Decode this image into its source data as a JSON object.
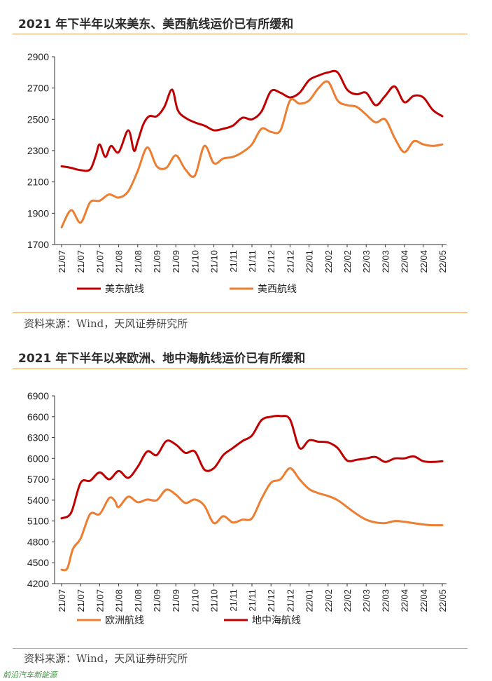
{
  "chart_data": [
    {
      "type": "line",
      "title": "2021 年下半年以来美东、美西航线运价已有所缓和",
      "categories": [
        "21/07",
        "21/07",
        "21/07",
        "21/08",
        "21/08",
        "21/09",
        "21/09",
        "21/10",
        "21/10",
        "21/11",
        "21/11",
        "21/12",
        "21/12",
        "22/01",
        "22/02",
        "22/02",
        "22/03",
        "22/03",
        "22/04",
        "22/04",
        "22/05"
      ],
      "ylim": [
        1700,
        2900
      ],
      "yticks": [
        1700,
        1900,
        2100,
        2300,
        2500,
        2700,
        2900
      ],
      "series": [
        {
          "name": "美东航线",
          "color": "#c00000",
          "x": [
            0,
            0.5,
            1,
            1.5,
            1.8,
            2,
            2.3,
            2.6,
            3,
            3.5,
            3.8,
            4,
            4.3,
            4.6,
            5,
            5.4,
            5.8,
            6.1,
            6.5,
            7,
            7.5,
            8,
            8.5,
            9,
            9.5,
            10,
            10.5,
            11,
            11.5,
            12,
            12.5,
            13,
            13.5,
            14,
            14.5,
            15,
            15.5,
            16,
            16.5,
            17,
            17.5,
            18,
            18.5,
            19,
            19.5,
            20
          ],
          "values": [
            2200,
            2190,
            2175,
            2180,
            2270,
            2340,
            2260,
            2330,
            2290,
            2430,
            2300,
            2360,
            2470,
            2520,
            2520,
            2580,
            2690,
            2560,
            2510,
            2480,
            2460,
            2430,
            2440,
            2460,
            2510,
            2500,
            2550,
            2680,
            2670,
            2640,
            2670,
            2750,
            2780,
            2800,
            2800,
            2690,
            2660,
            2670,
            2590,
            2650,
            2710,
            2610,
            2650,
            2640,
            2560,
            2520
          ]
        },
        {
          "name": "美西航线",
          "color": "#ed7d31",
          "x": [
            0,
            0.5,
            1,
            1.5,
            2,
            2.5,
            3,
            3.5,
            4,
            4.5,
            5,
            5.5,
            6,
            6.5,
            7,
            7.5,
            8,
            8.5,
            9,
            9.5,
            10,
            10.5,
            11,
            11.5,
            12,
            12.5,
            13,
            13.5,
            14,
            14.5,
            15,
            15.5,
            16,
            16.5,
            17,
            17.5,
            18,
            18.5,
            19,
            19.5,
            20
          ],
          "values": [
            1810,
            1920,
            1840,
            1970,
            1980,
            2020,
            2000,
            2040,
            2170,
            2320,
            2200,
            2190,
            2270,
            2180,
            2140,
            2330,
            2220,
            2250,
            2260,
            2290,
            2340,
            2440,
            2420,
            2430,
            2620,
            2600,
            2620,
            2700,
            2740,
            2620,
            2590,
            2580,
            2530,
            2480,
            2500,
            2380,
            2290,
            2360,
            2340,
            2330,
            2340
          ]
        }
      ]
    },
    {
      "type": "line",
      "title": "2021 年下半年以来欧洲、地中海航线运价已有所缓和",
      "categories": [
        "21/07",
        "21/07",
        "21/07",
        "21/08",
        "21/08",
        "21/09",
        "21/09",
        "21/10",
        "21/10",
        "21/11",
        "21/11",
        "21/12",
        "21/12",
        "22/01",
        "22/02",
        "22/02",
        "22/03",
        "22/03",
        "22/04",
        "22/04",
        "22/05"
      ],
      "ylim": [
        4200,
        6900
      ],
      "yticks": [
        4200,
        4500,
        4800,
        5100,
        5400,
        5700,
        6000,
        6300,
        6600,
        6900
      ],
      "series": [
        {
          "name": "欧洲航线",
          "color": "#ed7d31",
          "x": [
            0,
            0.3,
            0.6,
            1,
            1.5,
            2,
            2.5,
            2.8,
            3,
            3.5,
            4,
            4.5,
            5,
            5.5,
            6,
            6.5,
            7,
            7.5,
            8,
            8.5,
            9,
            9.5,
            10,
            10.5,
            11,
            11.5,
            12,
            12.5,
            13,
            13.5,
            14,
            14.5,
            15,
            15.5,
            16,
            16.5,
            17,
            17.5,
            18,
            18.5,
            19,
            19.5,
            20
          ],
          "values": [
            4400,
            4420,
            4700,
            4850,
            5200,
            5200,
            5430,
            5390,
            5300,
            5450,
            5370,
            5410,
            5400,
            5550,
            5480,
            5360,
            5410,
            5320,
            5070,
            5170,
            5080,
            5120,
            5140,
            5420,
            5650,
            5700,
            5860,
            5700,
            5560,
            5500,
            5460,
            5400,
            5300,
            5200,
            5120,
            5080,
            5070,
            5100,
            5090,
            5070,
            5050,
            5040,
            5040
          ]
        },
        {
          "name": "地中海航线",
          "color": "#c00000",
          "x": [
            0,
            0.5,
            1,
            1.5,
            2,
            2.5,
            3,
            3.5,
            4,
            4.5,
            5,
            5.5,
            6,
            6.5,
            7,
            7.5,
            8,
            8.5,
            9,
            9.5,
            10,
            10.5,
            11,
            11.5,
            12,
            12.5,
            13,
            13.5,
            14,
            14.5,
            15,
            15.5,
            16,
            16.5,
            17,
            17.5,
            18,
            18.5,
            19,
            19.5,
            20
          ],
          "values": [
            5140,
            5220,
            5650,
            5680,
            5800,
            5700,
            5820,
            5720,
            5880,
            6100,
            6050,
            6250,
            6200,
            6080,
            6100,
            5840,
            5860,
            6050,
            6150,
            6250,
            6330,
            6550,
            6600,
            6610,
            6560,
            6150,
            6260,
            6240,
            6230,
            6150,
            5970,
            5980,
            6000,
            6020,
            5950,
            6000,
            6000,
            6030,
            5960,
            5950,
            5960
          ]
        }
      ]
    }
  ],
  "sources": [
    "资料来源：Wind，天风证券研究所",
    "资料来源：Wind，天风证券研究所"
  ],
  "watermark": "前沿汽车新能源"
}
